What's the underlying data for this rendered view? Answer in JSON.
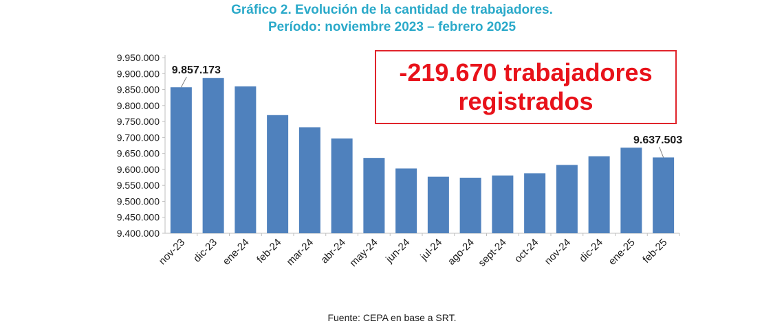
{
  "title_line1": "Gráfico 2. Evolución de la cantidad de trabajadores.",
  "title_line2": "Período: noviembre 2023 – febrero 2025",
  "callout": {
    "line1": "-219.670 trabajadores",
    "line2": "registrados"
  },
  "source": "Fuente: CEPA en base a SRT.",
  "colors": {
    "bar": "#4f81bd",
    "title": "#2aa9c9",
    "callout": "#e8121a"
  },
  "chart_data": {
    "type": "bar",
    "categories": [
      "nov-23",
      "dic-23",
      "ene-24",
      "feb-24",
      "mar-24",
      "abr-24",
      "may-24",
      "jun-24",
      "jul-24",
      "ago-24",
      "sept-24",
      "oct-24",
      "nov-24",
      "dic-24",
      "ene-25",
      "feb-25"
    ],
    "series": [
      {
        "values": [
          9857173,
          9886000,
          9860000,
          9770000,
          9732000,
          9697000,
          9636000,
          9603000,
          9577000,
          9574000,
          9581000,
          9588000,
          9614000,
          9641000,
          9668000,
          9637503
        ]
      }
    ],
    "ylim": [
      9400000,
      9950000
    ],
    "yticks": [
      "9.400.000",
      "9.450.000",
      "9.500.000",
      "9.550.000",
      "9.600.000",
      "9.650.000",
      "9.700.000",
      "9.750.000",
      "9.800.000",
      "9.850.000",
      "9.900.000",
      "9.950.000"
    ],
    "ytick_values": [
      9400000,
      9450000,
      9500000,
      9550000,
      9600000,
      9650000,
      9700000,
      9750000,
      9800000,
      9850000,
      9900000,
      9950000
    ],
    "data_labels": [
      {
        "index": 0,
        "text": "9.857.173"
      },
      {
        "index": 15,
        "text": "9.637.503"
      }
    ],
    "grid": false,
    "legend": "none"
  }
}
